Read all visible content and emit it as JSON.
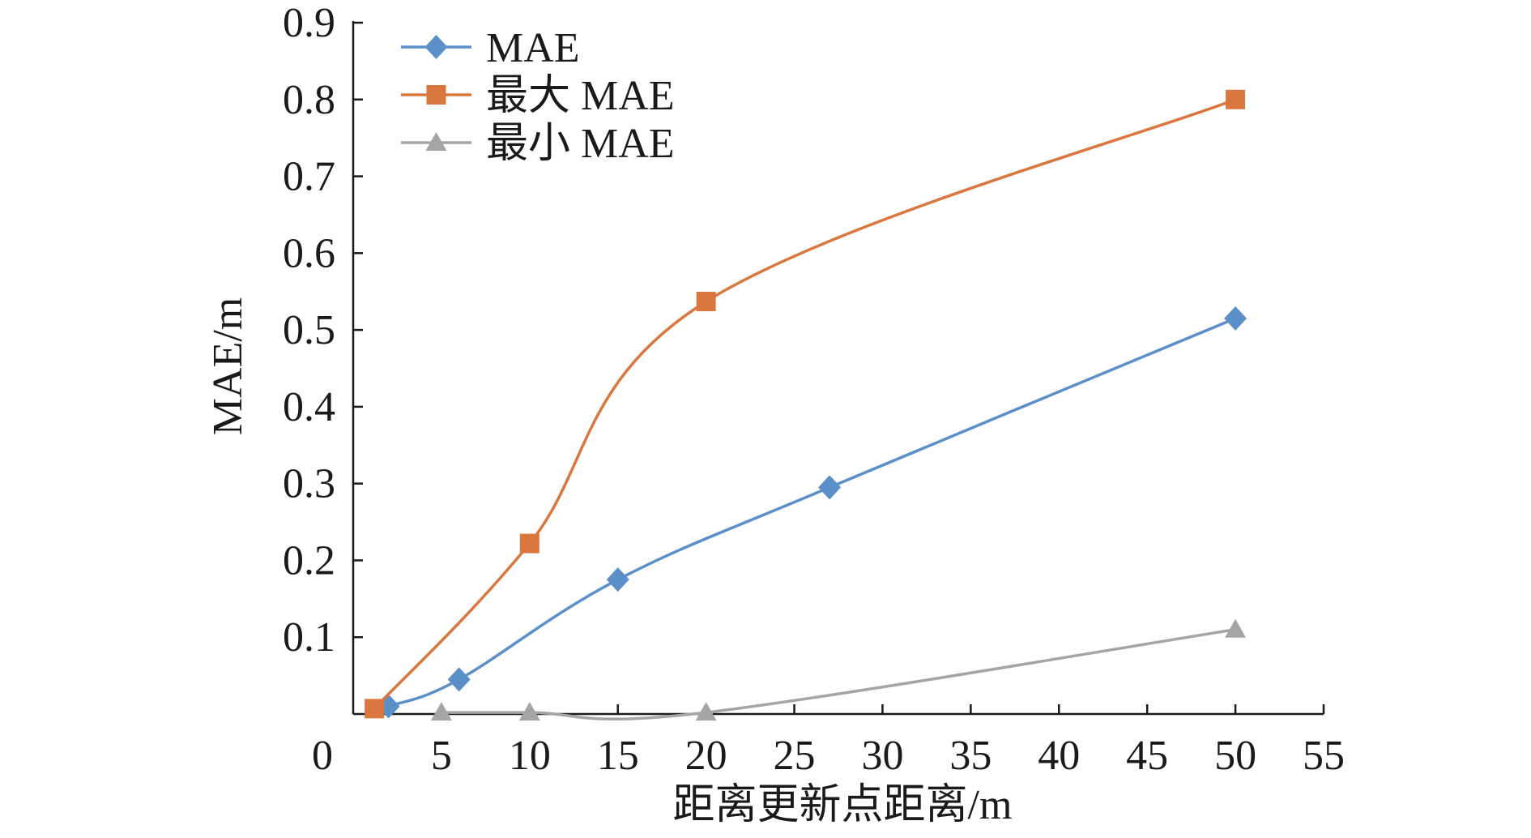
{
  "chart_data": {
    "type": "line",
    "title": "",
    "xlabel": "距离更新点距离/m",
    "ylabel": "MAE/m",
    "xlim": [
      0,
      55
    ],
    "ylim": [
      0,
      0.9
    ],
    "x_tick_labels": [
      "5",
      "10",
      "15",
      "20",
      "25",
      "30",
      "35",
      "40",
      "45",
      "50",
      "55"
    ],
    "x_tick_values": [
      5,
      10,
      15,
      20,
      25,
      30,
      35,
      40,
      45,
      50,
      55
    ],
    "y_tick_labels": [
      "0.1",
      "0.2",
      "0.3",
      "0.4",
      "0.5",
      "0.6",
      "0.7",
      "0.8",
      "0.9"
    ],
    "y_tick_values": [
      0.1,
      0.2,
      0.3,
      0.4,
      0.5,
      0.6,
      0.7,
      0.8,
      0.9
    ],
    "origin_label": "0",
    "grid": false,
    "legend_position": "top-left",
    "series": [
      {
        "name": "MAE",
        "color": "#5b8fc9",
        "marker": "diamond",
        "x": [
          2,
          6,
          15,
          27,
          50
        ],
        "y": [
          0.01,
          0.045,
          0.175,
          0.295,
          0.515
        ]
      },
      {
        "name": "最大 MAE",
        "color": "#d9773f",
        "marker": "square",
        "x": [
          1.2,
          10,
          20,
          50
        ],
        "y": [
          0.007,
          0.222,
          0.537,
          0.8
        ]
      },
      {
        "name": "最小 MAE",
        "color": "#a5a5a5",
        "marker": "triangle",
        "x": [
          5,
          10,
          20,
          50
        ],
        "y": [
          0.002,
          0.002,
          0.002,
          0.11
        ]
      }
    ]
  }
}
